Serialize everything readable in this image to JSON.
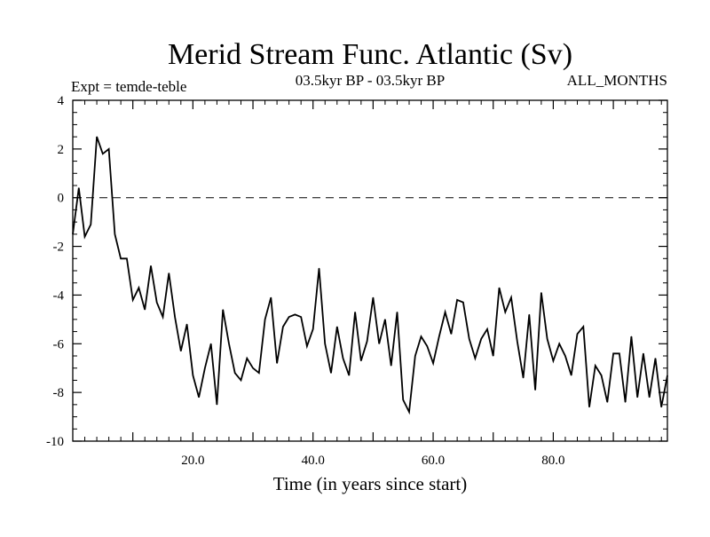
{
  "chart_data": {
    "type": "line",
    "title": "Merid Stream Func. Atlantic (Sv)",
    "subtitle_left": "Expt = temde-teble",
    "subtitle_center": "03.5kyr BP - 03.5kyr BP",
    "subtitle_right": "ALL_MONTHS",
    "xlabel": "Time (in years since start)",
    "ylabel": "",
    "xlim": [
      0,
      99
    ],
    "ylim": [
      -10,
      4
    ],
    "x_ticks": [
      20,
      40,
      60,
      80
    ],
    "x_tick_labels": [
      "20.0",
      "40.0",
      "60.0",
      "80.0"
    ],
    "y_ticks": [
      -10,
      -8,
      -6,
      -4,
      -2,
      0,
      2,
      4
    ],
    "y_tick_labels": [
      "-10",
      "-8",
      "-6",
      "-4",
      "-2",
      "0",
      "2",
      "4"
    ],
    "reference_line": {
      "y": 0,
      "style": "dashed"
    },
    "series": [
      {
        "name": "Merid Stream Func.",
        "x": [
          0,
          1,
          2,
          3,
          4,
          5,
          6,
          7,
          8,
          9,
          10,
          11,
          12,
          13,
          14,
          15,
          16,
          17,
          18,
          19,
          20,
          21,
          22,
          23,
          24,
          25,
          26,
          27,
          28,
          29,
          30,
          31,
          32,
          33,
          34,
          35,
          36,
          37,
          38,
          39,
          40,
          41,
          42,
          43,
          44,
          45,
          46,
          47,
          48,
          49,
          50,
          51,
          52,
          53,
          54,
          55,
          56,
          57,
          58,
          59,
          60,
          61,
          62,
          63,
          64,
          65,
          66,
          67,
          68,
          69,
          70,
          71,
          72,
          73,
          74,
          75,
          76,
          77,
          78,
          79,
          80,
          81,
          82,
          83,
          84,
          85,
          86,
          87,
          88,
          89,
          90,
          91,
          92,
          93,
          94,
          95,
          96,
          97,
          98,
          99
        ],
        "values": [
          -1.5,
          0.4,
          -1.6,
          -1.1,
          2.5,
          1.8,
          2.0,
          -1.5,
          -2.5,
          -2.5,
          -4.2,
          -3.7,
          -4.6,
          -2.8,
          -4.3,
          -4.9,
          -3.1,
          -4.9,
          -6.3,
          -5.2,
          -7.3,
          -8.2,
          -7.0,
          -6.0,
          -8.5,
          -4.6,
          -6.0,
          -7.2,
          -7.5,
          -6.6,
          -7.0,
          -7.2,
          -5.0,
          -4.1,
          -6.8,
          -5.3,
          -4.9,
          -4.8,
          -4.9,
          -6.1,
          -5.4,
          -2.9,
          -6.0,
          -7.2,
          -5.3,
          -6.6,
          -7.3,
          -4.7,
          -6.7,
          -5.9,
          -4.1,
          -6.0,
          -5.0,
          -6.9,
          -4.7,
          -8.3,
          -8.8,
          -6.5,
          -5.7,
          -6.1,
          -6.8,
          -5.7,
          -4.7,
          -5.6,
          -4.2,
          -4.3,
          -5.8,
          -6.6,
          -5.8,
          -5.4,
          -6.5,
          -3.7,
          -4.7,
          -4.1,
          -5.9,
          -7.4,
          -4.8,
          -7.9,
          -3.9,
          -5.8,
          -6.7,
          -6.0,
          -6.5,
          -7.3,
          -5.6,
          -5.3,
          -8.6,
          -6.9,
          -7.3,
          -8.4,
          -6.4,
          -6.4,
          -8.4,
          -5.7,
          -8.2,
          -6.4,
          -8.2,
          -6.6,
          -8.6,
          -7.3
        ]
      }
    ]
  }
}
